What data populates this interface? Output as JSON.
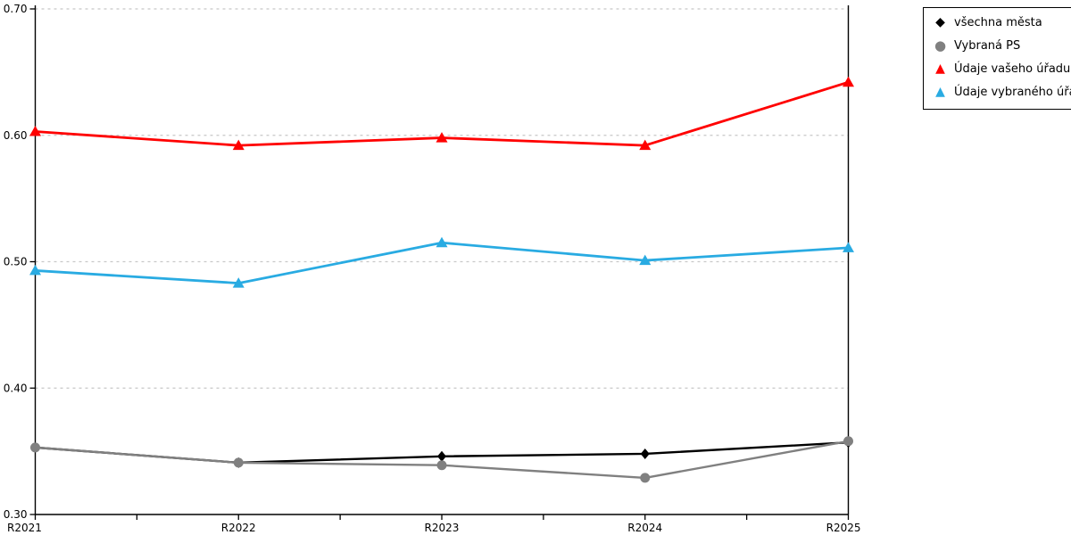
{
  "chart_data": {
    "type": "line",
    "title": "",
    "xlabel": "",
    "ylabel": "",
    "categories": [
      "R2021",
      "R2022",
      "R2023",
      "R2024",
      "R2025"
    ],
    "series": [
      {
        "name": "všechna města",
        "color": "#000000",
        "marker": "diamond",
        "values": [
          0.353,
          0.341,
          0.346,
          0.348,
          0.357
        ]
      },
      {
        "name": "Vybraná PS",
        "color": "#808080",
        "marker": "circle",
        "values": [
          0.353,
          0.341,
          0.339,
          0.329,
          0.358
        ]
      },
      {
        "name": "Údaje vašeho úřadu",
        "color": "#ff0000",
        "marker": "triangle",
        "values": [
          0.603,
          0.592,
          0.598,
          0.592,
          0.642
        ]
      },
      {
        "name": "Údaje vybraného úřadu",
        "color": "#29abe2",
        "marker": "triangle",
        "values": [
          0.493,
          0.483,
          0.515,
          0.501,
          0.511
        ]
      }
    ],
    "ylim": [
      0.3,
      0.7
    ],
    "yticks": [
      0.3,
      0.4,
      0.5,
      0.6,
      0.7
    ],
    "ytick_labels": [
      "0.30",
      "0.40",
      "0.50",
      "0.60",
      "0.70"
    ],
    "grid": "horizontal-dashed",
    "legend_position": "outside-top-right"
  },
  "colors": {
    "background": "#ffffff",
    "axis": "#000000",
    "grid": "#c8c8c8",
    "legend_border": "#000000"
  },
  "legend_marker_glyphs": {
    "diamond": "◆",
    "circle": "●",
    "triangle": "▲"
  }
}
